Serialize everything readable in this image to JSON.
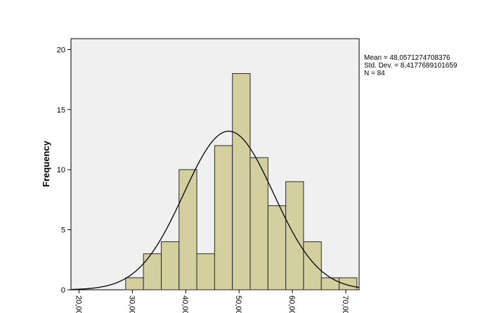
{
  "chart_data": {
    "type": "bar",
    "subtype": "histogram",
    "title": "",
    "xlabel": "",
    "ylabel": "Frequency",
    "colors": {
      "bar_fill": "#d4cf9f",
      "bar_stroke": "#2a2a2a",
      "plot_background": "#f0f0f0",
      "curve": "#000000"
    },
    "grid": false,
    "legend": "none",
    "xlim": [
      18.5,
      72.5
    ],
    "ylim": [
      0,
      20.9
    ],
    "x_ticks": [
      "20,00",
      "30,00",
      "40,00",
      "50,00",
      "60,00",
      "70,00"
    ],
    "x_tick_values": [
      20,
      30,
      40,
      50,
      60,
      70
    ],
    "y_ticks": [
      "0",
      "5",
      "10",
      "15",
      "20"
    ],
    "y_tick_values": [
      0,
      5,
      10,
      15,
      20
    ],
    "bins": [
      {
        "from": 28.75,
        "to": 32.08,
        "count": 1
      },
      {
        "from": 32.08,
        "to": 35.42,
        "count": 3
      },
      {
        "from": 35.42,
        "to": 38.75,
        "count": 4
      },
      {
        "from": 38.75,
        "to": 42.08,
        "count": 10
      },
      {
        "from": 42.08,
        "to": 45.42,
        "count": 3
      },
      {
        "from": 45.42,
        "to": 48.75,
        "count": 12
      },
      {
        "from": 48.75,
        "to": 52.08,
        "count": 18
      },
      {
        "from": 52.08,
        "to": 55.42,
        "count": 11
      },
      {
        "from": 55.42,
        "to": 58.75,
        "count": 7
      },
      {
        "from": 58.75,
        "to": 62.08,
        "count": 9
      },
      {
        "from": 62.08,
        "to": 65.42,
        "count": 4
      },
      {
        "from": 65.42,
        "to": 68.75,
        "count": 1
      },
      {
        "from": 68.75,
        "to": 72.08,
        "count": 1
      }
    ],
    "normal_curve": {
      "mean": 48.0571274708376,
      "std_dev": 8.4177689101659,
      "n": 84,
      "peak": 13.2
    },
    "stats": {
      "mean_label": "Mean = 48,0571274708376",
      "std_label": "Std. Dev. = 8,4177689101659",
      "n_label": "N = 84"
    }
  }
}
